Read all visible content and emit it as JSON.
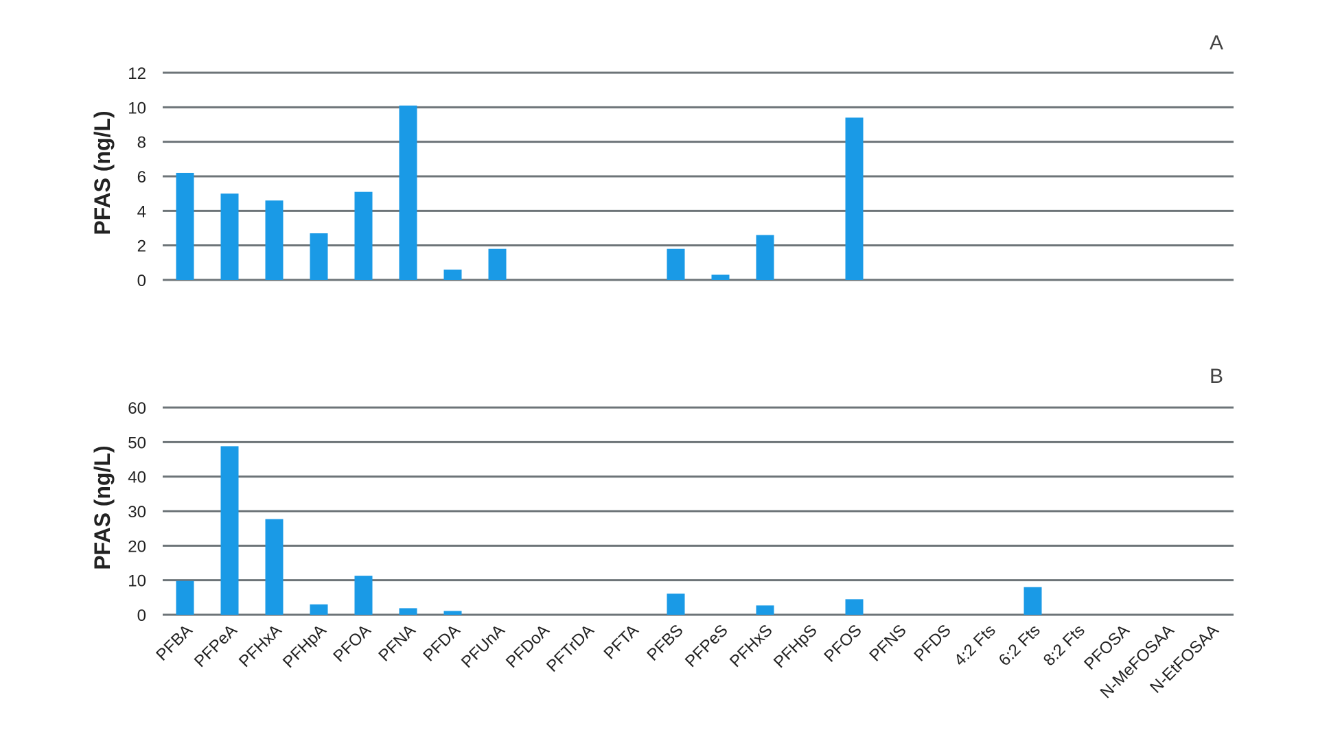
{
  "colors": {
    "bar": "#1a9ae6",
    "grid": "#6d7478",
    "text": "#222222"
  },
  "chart_data": [
    {
      "type": "bar",
      "panel": "A",
      "ylabel": "PFAS (ng/L)",
      "ylim": [
        0,
        12
      ],
      "yticks": [
        0,
        2,
        4,
        6,
        8,
        10,
        12
      ],
      "grid": true,
      "categories": [
        "PFBA",
        "PFPeA",
        "PFHxA",
        "PFHpA",
        "PFOA",
        "PFNA",
        "PFDA",
        "PFUnA",
        "PFDoA",
        "PFTrDA",
        "PFTA",
        "PFBS",
        "PFPeS",
        "PFHxS",
        "PFHpS",
        "PFOS",
        "PFNS",
        "PFDS",
        "4:2 Fts",
        "6:2 Fts",
        "8:2 Fts",
        "PFOSA",
        "N-MeFOSAA",
        "N-EtFOSAA"
      ],
      "values": [
        6.2,
        5.0,
        4.6,
        2.7,
        5.1,
        10.1,
        0.6,
        1.8,
        0,
        0,
        0,
        1.8,
        0.3,
        2.6,
        0,
        9.4,
        0,
        0,
        0,
        0,
        0,
        0,
        0,
        0
      ]
    },
    {
      "type": "bar",
      "panel": "B",
      "ylabel": "PFAS (ng/L)",
      "ylim": [
        0,
        60
      ],
      "yticks": [
        0,
        10,
        20,
        30,
        40,
        50,
        60
      ],
      "grid": true,
      "categories": [
        "PFBA",
        "PFPeA",
        "PFHxA",
        "PFHpA",
        "PFOA",
        "PFNA",
        "PFDA",
        "PFUnA",
        "PFDoA",
        "PFTrDA",
        "PFTA",
        "PFBS",
        "PFPeS",
        "PFHxS",
        "PFHpS",
        "PFOS",
        "PFNS",
        "PFDS",
        "4:2 Fts",
        "6:2 Fts",
        "8:2 Fts",
        "PFOSA",
        "N-MeFOSAA",
        "N-EtFOSAA"
      ],
      "values": [
        9.8,
        48.8,
        27.7,
        3.0,
        11.3,
        1.9,
        1.1,
        0,
        0,
        0,
        0,
        6.1,
        0,
        2.7,
        0,
        4.5,
        0,
        0,
        0,
        8.0,
        0,
        0,
        0,
        0
      ]
    }
  ]
}
